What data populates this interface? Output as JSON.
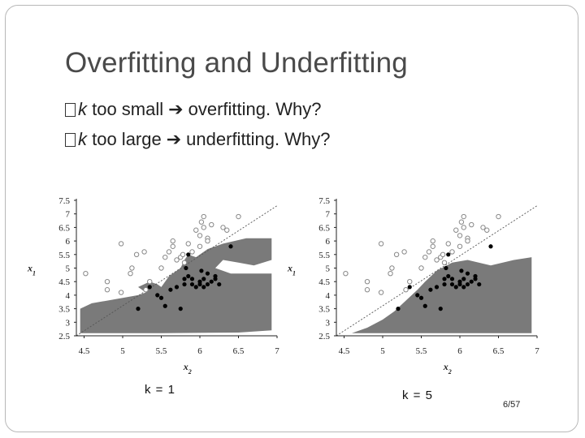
{
  "slide": {
    "title": "Overfitting and Underfitting",
    "bullets": [
      {
        "k": "k",
        "before": " too small",
        "after": "overfitting. Why?"
      },
      {
        "k": "k",
        "before": " too large",
        "after": "underfitting. Why?"
      }
    ],
    "page": "6/57"
  },
  "colors": {
    "region": "#7a7a7a",
    "open_point": "#888888",
    "filled_point": "#000000",
    "diagonal": "#555555"
  },
  "chart_data": [
    {
      "type": "scatter",
      "caption": "k = 1",
      "xlabel": "x2",
      "ylabel": "x1",
      "xlim": [
        4.4,
        7.0
      ],
      "ylim": [
        2.5,
        7.5
      ],
      "xticks": [
        "4.5",
        "5",
        "5.5",
        "6",
        "6.5",
        "7"
      ],
      "yticks": [
        "2.5",
        "3",
        "3.5",
        "4",
        "4.5",
        "5",
        "5.5",
        "6",
        "6.5",
        "7",
        "7.5"
      ],
      "diagonal": [
        [
          4.4,
          2.5
        ],
        [
          7.0,
          7.3
        ]
      ],
      "region": [
        [
          4.45,
          3.5
        ],
        [
          4.6,
          3.7
        ],
        [
          4.8,
          3.8
        ],
        [
          5.0,
          3.9
        ],
        [
          5.2,
          4.0
        ],
        [
          5.3,
          4.1
        ],
        [
          5.2,
          4.3
        ],
        [
          5.35,
          4.5
        ],
        [
          5.45,
          4.4
        ],
        [
          5.5,
          4.3
        ],
        [
          5.6,
          4.7
        ],
        [
          5.75,
          5.0
        ],
        [
          5.8,
          5.3
        ],
        [
          5.85,
          5.5
        ],
        [
          5.95,
          5.4
        ],
        [
          6.0,
          5.5
        ],
        [
          6.1,
          5.7
        ],
        [
          6.3,
          5.9
        ],
        [
          6.6,
          6.1
        ],
        [
          6.93,
          6.1
        ],
        [
          6.93,
          5.3
        ],
        [
          6.7,
          5.1
        ],
        [
          6.5,
          5.2
        ],
        [
          6.3,
          5.3
        ],
        [
          6.2,
          5.0
        ],
        [
          6.4,
          4.8
        ],
        [
          6.93,
          4.8
        ],
        [
          6.93,
          2.7
        ],
        [
          6.5,
          2.62
        ],
        [
          5.5,
          2.6
        ],
        [
          4.45,
          2.6
        ]
      ],
      "points_open": [
        [
          4.52,
          4.8
        ],
        [
          4.8,
          4.5
        ],
        [
          4.8,
          4.2
        ],
        [
          4.98,
          4.1
        ],
        [
          4.98,
          5.9
        ],
        [
          5.1,
          4.8
        ],
        [
          5.12,
          5.0
        ],
        [
          5.18,
          5.5
        ],
        [
          5.28,
          5.6
        ],
        [
          5.3,
          4.2
        ],
        [
          5.35,
          4.5
        ],
        [
          5.5,
          5.0
        ],
        [
          5.55,
          5.4
        ],
        [
          5.6,
          5.6
        ],
        [
          5.65,
          5.8
        ],
        [
          5.65,
          6.0
        ],
        [
          5.7,
          5.3
        ],
        [
          5.75,
          5.4
        ],
        [
          5.78,
          5.5
        ],
        [
          5.8,
          5.2
        ],
        [
          5.85,
          5.9
        ],
        [
          5.9,
          5.6
        ],
        [
          5.95,
          6.4
        ],
        [
          6.0,
          6.2
        ],
        [
          6.0,
          5.8
        ],
        [
          6.02,
          6.7
        ],
        [
          6.05,
          6.5
        ],
        [
          6.05,
          6.9
        ],
        [
          6.1,
          6.1
        ],
        [
          6.1,
          6.0
        ],
        [
          6.15,
          6.6
        ],
        [
          6.3,
          6.5
        ],
        [
          6.35,
          6.4
        ],
        [
          6.5,
          6.9
        ]
      ],
      "points_filled": [
        [
          5.2,
          3.5
        ],
        [
          5.35,
          4.3
        ],
        [
          5.45,
          4.0
        ],
        [
          5.5,
          3.9
        ],
        [
          5.55,
          3.6
        ],
        [
          5.62,
          4.2
        ],
        [
          5.7,
          4.3
        ],
        [
          5.75,
          3.5
        ],
        [
          5.8,
          4.4
        ],
        [
          5.8,
          4.6
        ],
        [
          5.82,
          5.0
        ],
        [
          5.85,
          4.7
        ],
        [
          5.85,
          5.5
        ],
        [
          5.9,
          4.4
        ],
        [
          5.9,
          4.6
        ],
        [
          5.95,
          4.3
        ],
        [
          6.0,
          4.4
        ],
        [
          6.0,
          4.5
        ],
        [
          6.02,
          4.9
        ],
        [
          6.05,
          4.6
        ],
        [
          6.05,
          4.3
        ],
        [
          6.1,
          4.4
        ],
        [
          6.1,
          4.8
        ],
        [
          6.15,
          4.5
        ],
        [
          6.2,
          4.6
        ],
        [
          6.2,
          4.7
        ],
        [
          6.25,
          4.4
        ],
        [
          6.4,
          5.8
        ]
      ]
    },
    {
      "type": "scatter",
      "caption": "k = 5",
      "xlabel": "x2",
      "ylabel": "x1",
      "xlim": [
        4.4,
        7.0
      ],
      "ylim": [
        2.5,
        7.5
      ],
      "xticks": [
        "4.5",
        "5",
        "5.5",
        "6",
        "6.5",
        "7"
      ],
      "yticks": [
        "2.5",
        "3",
        "3.5",
        "4",
        "4.5",
        "5",
        "5.5",
        "6",
        "6.5",
        "7",
        "7.5"
      ],
      "diagonal": [
        [
          4.4,
          2.5
        ],
        [
          7.0,
          7.3
        ]
      ],
      "region": [
        [
          4.6,
          2.6
        ],
        [
          4.8,
          2.8
        ],
        [
          5.0,
          3.1
        ],
        [
          5.15,
          3.4
        ],
        [
          5.3,
          3.8
        ],
        [
          5.45,
          4.2
        ],
        [
          5.55,
          4.5
        ],
        [
          5.7,
          4.9
        ],
        [
          5.9,
          5.2
        ],
        [
          6.1,
          5.3
        ],
        [
          6.4,
          5.1
        ],
        [
          6.7,
          5.3
        ],
        [
          6.93,
          5.4
        ],
        [
          6.93,
          2.6
        ]
      ],
      "points_open": [
        [
          4.52,
          4.8
        ],
        [
          4.8,
          4.5
        ],
        [
          4.8,
          4.2
        ],
        [
          4.98,
          4.1
        ],
        [
          4.98,
          5.9
        ],
        [
          5.1,
          4.8
        ],
        [
          5.12,
          5.0
        ],
        [
          5.18,
          5.5
        ],
        [
          5.28,
          5.6
        ],
        [
          5.3,
          4.2
        ],
        [
          5.35,
          4.5
        ],
        [
          5.5,
          5.0
        ],
        [
          5.55,
          5.4
        ],
        [
          5.6,
          5.6
        ],
        [
          5.65,
          5.8
        ],
        [
          5.65,
          6.0
        ],
        [
          5.7,
          5.3
        ],
        [
          5.75,
          5.4
        ],
        [
          5.78,
          5.5
        ],
        [
          5.8,
          5.2
        ],
        [
          5.85,
          5.9
        ],
        [
          5.9,
          5.6
        ],
        [
          5.95,
          6.4
        ],
        [
          6.0,
          6.2
        ],
        [
          6.0,
          5.8
        ],
        [
          6.02,
          6.7
        ],
        [
          6.05,
          6.5
        ],
        [
          6.05,
          6.9
        ],
        [
          6.1,
          6.1
        ],
        [
          6.1,
          6.0
        ],
        [
          6.15,
          6.6
        ],
        [
          6.3,
          6.5
        ],
        [
          6.35,
          6.4
        ],
        [
          6.5,
          6.9
        ]
      ],
      "points_filled": [
        [
          5.2,
          3.5
        ],
        [
          5.35,
          4.3
        ],
        [
          5.45,
          4.0
        ],
        [
          5.5,
          3.9
        ],
        [
          5.55,
          3.6
        ],
        [
          5.62,
          4.2
        ],
        [
          5.7,
          4.3
        ],
        [
          5.75,
          3.5
        ],
        [
          5.8,
          4.4
        ],
        [
          5.8,
          4.6
        ],
        [
          5.82,
          5.0
        ],
        [
          5.85,
          4.7
        ],
        [
          5.85,
          5.5
        ],
        [
          5.9,
          4.4
        ],
        [
          5.9,
          4.6
        ],
        [
          5.95,
          4.3
        ],
        [
          6.0,
          4.4
        ],
        [
          6.0,
          4.5
        ],
        [
          6.02,
          4.9
        ],
        [
          6.05,
          4.6
        ],
        [
          6.05,
          4.3
        ],
        [
          6.1,
          4.4
        ],
        [
          6.1,
          4.8
        ],
        [
          6.15,
          4.5
        ],
        [
          6.2,
          4.6
        ],
        [
          6.2,
          4.7
        ],
        [
          6.25,
          4.4
        ],
        [
          6.4,
          5.8
        ]
      ]
    }
  ]
}
